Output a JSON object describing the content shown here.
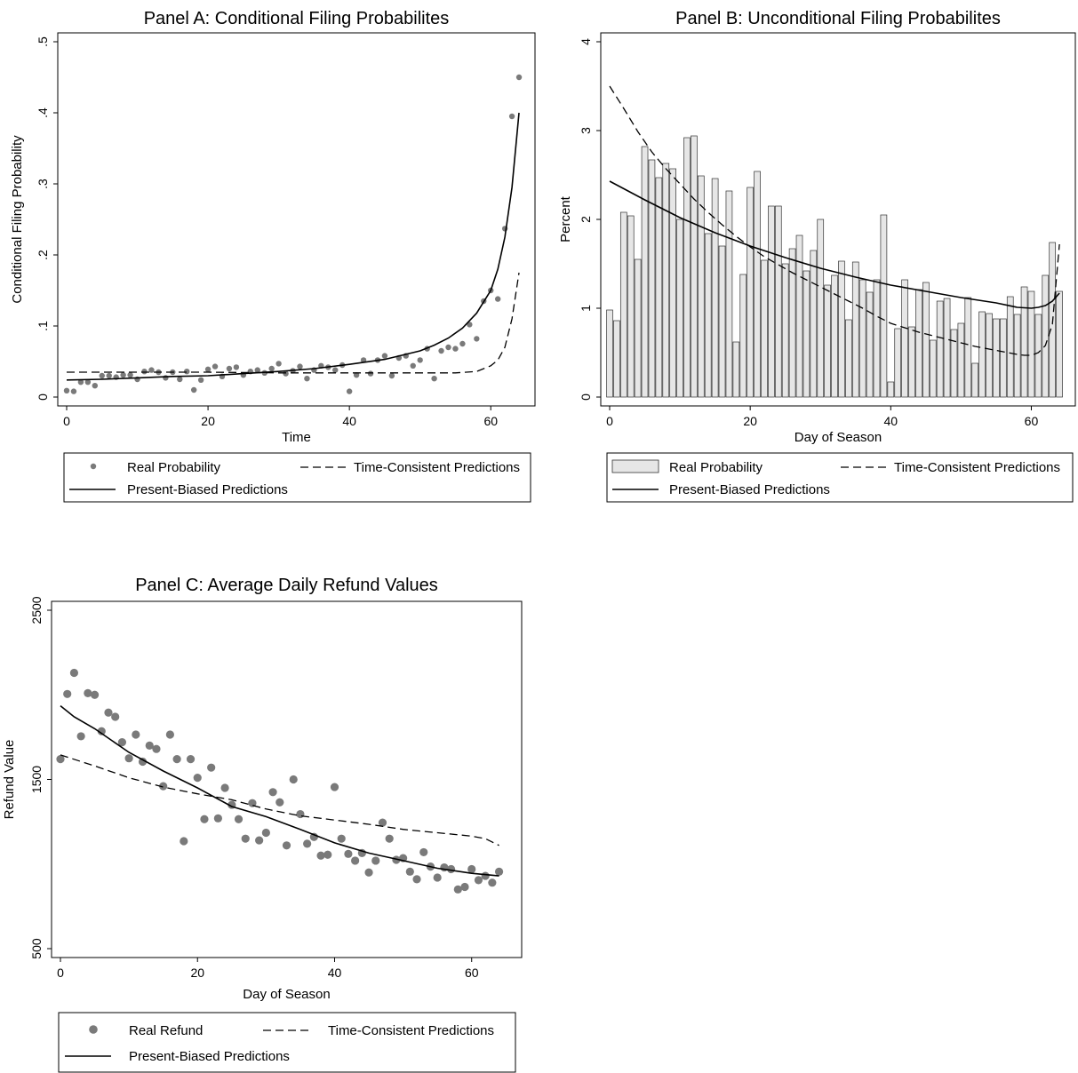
{
  "chart_data": [
    {
      "id": "A",
      "type": "scatter",
      "title": "Panel A: Conditional Filing Probabilites",
      "xlabel": "Time",
      "ylabel": "Conditional Filing Probability",
      "xlim": [
        0,
        65
      ],
      "ylim": [
        0,
        0.5
      ],
      "xticks": [
        {
          "v": 0,
          "t": "0"
        },
        {
          "v": 20,
          "t": "20"
        },
        {
          "v": 40,
          "t": "40"
        },
        {
          "v": 60,
          "t": "60"
        }
      ],
      "yticks": [
        {
          "v": 0,
          "t": "0"
        },
        {
          "v": 0.1,
          "t": ".1"
        },
        {
          "v": 0.2,
          "t": ".2"
        },
        {
          "v": 0.3,
          "t": ".3"
        },
        {
          "v": 0.4,
          "t": ".4"
        },
        {
          "v": 0.5,
          "t": ".5"
        }
      ],
      "grid": false,
      "legend": {
        "position": "bottom",
        "items": [
          {
            "label": "Real Probability",
            "kind": "dot"
          },
          {
            "label": "Time-Consistent Predictions",
            "kind": "dash"
          },
          {
            "label": "Present-Biased Predictions",
            "kind": "solid"
          }
        ]
      },
      "series": [
        {
          "name": "Real Probability",
          "kind": "points",
          "x": [
            0,
            1,
            2,
            3,
            4,
            5,
            6,
            7,
            8,
            9,
            10,
            11,
            12,
            13,
            14,
            15,
            16,
            17,
            18,
            19,
            20,
            21,
            22,
            23,
            24,
            25,
            26,
            27,
            28,
            29,
            30,
            31,
            32,
            33,
            34,
            35,
            36,
            37,
            38,
            39,
            40,
            41,
            42,
            43,
            44,
            45,
            46,
            47,
            48,
            49,
            50,
            51,
            52,
            53,
            54,
            55,
            56,
            57,
            58,
            59,
            60,
            61,
            62,
            63,
            64
          ],
          "y": [
            0.009,
            0.008,
            0.021,
            0.021,
            0.016,
            0.03,
            0.03,
            0.028,
            0.031,
            0.031,
            0.025,
            0.036,
            0.038,
            0.035,
            0.027,
            0.035,
            0.025,
            0.036,
            0.01,
            0.024,
            0.039,
            0.043,
            0.029,
            0.04,
            0.042,
            0.031,
            0.036,
            0.038,
            0.034,
            0.04,
            0.047,
            0.033,
            0.037,
            0.043,
            0.026,
            0.038,
            0.044,
            0.042,
            0.038,
            0.045,
            0.008,
            0.031,
            0.052,
            0.033,
            0.052,
            0.058,
            0.03,
            0.055,
            0.058,
            0.044,
            0.052,
            0.068,
            0.026,
            0.065,
            0.07,
            0.068,
            0.075,
            0.102,
            0.082,
            0.135,
            0.15,
            0.138,
            0.237,
            0.395,
            0.45
          ]
        },
        {
          "name": "Time-Consistent Predictions",
          "kind": "dash",
          "x": [
            0,
            10,
            20,
            30,
            40,
            50,
            55,
            58,
            60,
            61,
            62,
            63,
            64
          ],
          "y": [
            0.035,
            0.035,
            0.035,
            0.034,
            0.034,
            0.034,
            0.034,
            0.036,
            0.044,
            0.052,
            0.07,
            0.11,
            0.175
          ]
        },
        {
          "name": "Present-Biased Predictions",
          "kind": "solid",
          "x": [
            0,
            5,
            10,
            15,
            20,
            25,
            30,
            35,
            40,
            45,
            50,
            52,
            54,
            56,
            58,
            60,
            61,
            62,
            63,
            64
          ],
          "y": [
            0.024,
            0.025,
            0.027,
            0.029,
            0.03,
            0.033,
            0.036,
            0.04,
            0.046,
            0.053,
            0.065,
            0.073,
            0.083,
            0.097,
            0.118,
            0.15,
            0.18,
            0.225,
            0.295,
            0.4
          ]
        }
      ]
    },
    {
      "id": "B",
      "type": "bar",
      "title": "Panel B: Unconditional Filing Probabilites",
      "xlabel": "Day of Season",
      "ylabel": "Percent",
      "xlim": [
        0,
        65
      ],
      "ylim": [
        0,
        4
      ],
      "xticks": [
        {
          "v": 0,
          "t": "0"
        },
        {
          "v": 20,
          "t": "20"
        },
        {
          "v": 40,
          "t": "40"
        },
        {
          "v": 60,
          "t": "60"
        }
      ],
      "yticks": [
        {
          "v": 0,
          "t": "0"
        },
        {
          "v": 1,
          "t": "1"
        },
        {
          "v": 2,
          "t": "2"
        },
        {
          "v": 3,
          "t": "3"
        },
        {
          "v": 4,
          "t": "4"
        }
      ],
      "grid": false,
      "legend": {
        "position": "bottom",
        "items": [
          {
            "label": "Real Probability",
            "kind": "bar"
          },
          {
            "label": "Time-Consistent Predictions",
            "kind": "dash"
          },
          {
            "label": "Present-Biased Predictions",
            "kind": "solid"
          }
        ]
      },
      "series": [
        {
          "name": "Real Probability",
          "kind": "bars",
          "x": [
            0,
            1,
            2,
            3,
            4,
            5,
            6,
            7,
            8,
            9,
            10,
            11,
            12,
            13,
            14,
            15,
            16,
            17,
            18,
            19,
            20,
            21,
            22,
            23,
            24,
            25,
            26,
            27,
            28,
            29,
            30,
            31,
            32,
            33,
            34,
            35,
            36,
            37,
            38,
            39,
            40,
            41,
            42,
            43,
            44,
            45,
            46,
            47,
            48,
            49,
            50,
            51,
            52,
            53,
            54,
            55,
            56,
            57,
            58,
            59,
            60,
            61,
            62,
            63,
            64
          ],
          "y": [
            0.98,
            0.86,
            2.08,
            2.04,
            1.55,
            2.82,
            2.67,
            2.47,
            2.63,
            2.57,
            2.0,
            2.92,
            2.94,
            2.49,
            1.84,
            2.46,
            1.7,
            2.32,
            0.62,
            1.38,
            2.36,
            2.54,
            1.54,
            2.15,
            2.15,
            1.5,
            1.67,
            1.82,
            1.42,
            1.65,
            2.0,
            1.26,
            1.37,
            1.53,
            0.87,
            1.52,
            1.32,
            1.18,
            1.32,
            2.05,
            0.17,
            0.77,
            1.32,
            0.79,
            1.21,
            1.29,
            0.64,
            1.08,
            1.11,
            0.76,
            0.83,
            1.12,
            0.38,
            0.96,
            0.94,
            0.88,
            0.88,
            1.13,
            0.93,
            1.24,
            1.19,
            0.93,
            1.37,
            1.74,
            1.19
          ]
        },
        {
          "name": "Time-Consistent Predictions",
          "kind": "dash",
          "x": [
            0,
            2,
            4,
            6,
            8,
            10,
            12,
            14,
            16,
            18,
            20,
            22,
            24,
            26,
            28,
            30,
            32,
            34,
            36,
            38,
            40,
            42,
            44,
            46,
            48,
            50,
            52,
            54,
            56,
            58,
            59,
            60,
            61,
            62,
            63,
            64
          ],
          "y": [
            3.5,
            3.25,
            2.99,
            2.76,
            2.57,
            2.4,
            2.23,
            2.08,
            1.94,
            1.81,
            1.69,
            1.58,
            1.49,
            1.4,
            1.32,
            1.24,
            1.16,
            1.08,
            1.0,
            0.91,
            0.83,
            0.78,
            0.73,
            0.69,
            0.65,
            0.61,
            0.57,
            0.54,
            0.51,
            0.48,
            0.47,
            0.47,
            0.5,
            0.58,
            0.82,
            1.72
          ]
        },
        {
          "name": "Present-Biased Predictions",
          "kind": "solid",
          "x": [
            0,
            5,
            10,
            15,
            20,
            25,
            30,
            35,
            40,
            45,
            50,
            55,
            58,
            60,
            61,
            62,
            63,
            64
          ],
          "y": [
            2.43,
            2.22,
            2.02,
            1.85,
            1.7,
            1.57,
            1.45,
            1.35,
            1.26,
            1.19,
            1.12,
            1.06,
            1.01,
            1.0,
            1.01,
            1.03,
            1.08,
            1.17
          ]
        }
      ]
    },
    {
      "id": "C",
      "type": "scatter",
      "title": "Panel C: Average Daily Refund Values",
      "xlabel": "Day of Season",
      "ylabel": "Refund Value",
      "xlim": [
        0,
        66
      ],
      "ylim": [
        500,
        2500
      ],
      "xticks": [
        {
          "v": 0,
          "t": "0"
        },
        {
          "v": 20,
          "t": "20"
        },
        {
          "v": 40,
          "t": "40"
        },
        {
          "v": 60,
          "t": "60"
        }
      ],
      "yticks": [
        {
          "v": 500,
          "t": "500"
        },
        {
          "v": 1500,
          "t": "1500"
        },
        {
          "v": 2500,
          "t": "2500"
        }
      ],
      "grid": false,
      "legend": {
        "position": "bottom",
        "items": [
          {
            "label": "Real Refund",
            "kind": "bigdot"
          },
          {
            "label": "Time-Consistent Predictions",
            "kind": "dash"
          },
          {
            "label": "Present-Biased Predictions",
            "kind": "solid"
          }
        ]
      },
      "series": [
        {
          "name": "Real Refund",
          "kind": "points",
          "x": [
            0,
            1,
            2,
            3,
            4,
            5,
            6,
            7,
            8,
            9,
            10,
            11,
            12,
            13,
            14,
            15,
            16,
            17,
            18,
            19,
            20,
            21,
            22,
            23,
            24,
            25,
            26,
            27,
            28,
            29,
            30,
            31,
            32,
            33,
            34,
            35,
            36,
            37,
            38,
            39,
            40,
            41,
            42,
            43,
            44,
            45,
            46,
            47,
            48,
            49,
            50,
            51,
            52,
            53,
            54,
            55,
            56,
            57,
            58,
            59,
            60,
            61,
            62,
            63,
            64
          ],
          "y": [
            1620,
            2005,
            2130,
            1755,
            2010,
            2000,
            1785,
            1895,
            1870,
            1720,
            1625,
            1765,
            1605,
            1700,
            1680,
            1460,
            1765,
            1620,
            1135,
            1620,
            1510,
            1265,
            1570,
            1270,
            1450,
            1350,
            1265,
            1150,
            1360,
            1140,
            1185,
            1425,
            1365,
            1110,
            1500,
            1295,
            1120,
            1160,
            1050,
            1055,
            1455,
            1150,
            1060,
            1020,
            1065,
            950,
            1020,
            1245,
            1150,
            1025,
            1035,
            955,
            910,
            1070,
            985,
            920,
            980,
            970,
            850,
            865,
            970,
            905,
            930,
            890,
            955
          ]
        },
        {
          "name": "Time-Consistent Predictions",
          "kind": "dash",
          "x": [
            0,
            5,
            10,
            15,
            20,
            25,
            30,
            35,
            40,
            45,
            50,
            55,
            60,
            62,
            64
          ],
          "y": [
            1645,
            1580,
            1510,
            1455,
            1415,
            1380,
            1325,
            1285,
            1260,
            1235,
            1205,
            1185,
            1165,
            1150,
            1110
          ]
        },
        {
          "name": "Present-Biased Predictions",
          "kind": "solid",
          "x": [
            0,
            2,
            5,
            10,
            15,
            20,
            25,
            30,
            35,
            40,
            45,
            50,
            55,
            60,
            64
          ],
          "y": [
            1935,
            1870,
            1800,
            1660,
            1550,
            1450,
            1340,
            1280,
            1205,
            1125,
            1065,
            1020,
            975,
            945,
            930
          ]
        }
      ]
    }
  ]
}
